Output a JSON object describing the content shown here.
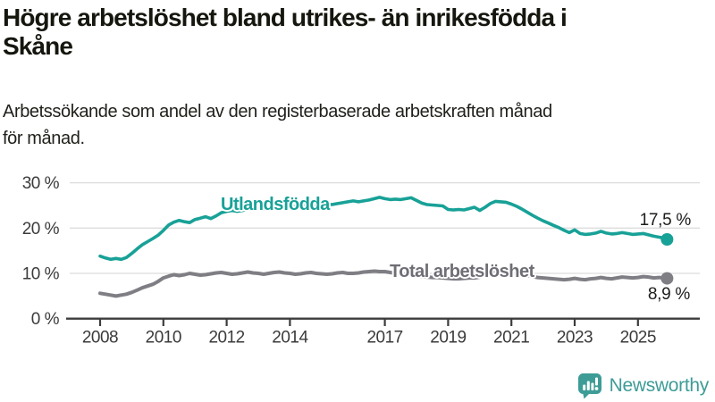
{
  "header": {
    "title": "Högre arbetslöshet bland utrikes- än inrikesfödda i Skåne",
    "title_lines": [
      "Högre arbetslöshet bland utrikes- än inrikesfödda i",
      "Skåne"
    ],
    "subtitle": "Arbetssökande som andel av den registerbaserade arbetskraften månad för månad.",
    "subtitle_lines": [
      "Arbetssökande som andel av den registerbaserade arbetskraften månad",
      "för månad."
    ]
  },
  "chart_data": {
    "type": "line",
    "title": "Högre arbetslöshet bland utrikes- än inrikesfödda i Skåne",
    "subtitle": "Arbetssökande som andel av den registerbaserade arbetskraften månad för månad.",
    "unit": "%",
    "grid": true,
    "legend_position": "inline-labels",
    "x_axis": {
      "ticks": [
        2008,
        2010,
        2012,
        2014,
        2017,
        2019,
        2021,
        2023,
        2025
      ],
      "range": [
        2007,
        2026.9
      ]
    },
    "y_axis": {
      "ticks": [
        0,
        10,
        20,
        30
      ],
      "tick_labels": [
        "0 %",
        "10 %",
        "20 %",
        "30 %"
      ],
      "range": [
        0,
        30
      ]
    },
    "series": [
      {
        "name": "Utlandsfödda",
        "color": "#18a197",
        "label_color": "#18a197",
        "end_value": 17.5,
        "end_label": "17,5 %",
        "points": [
          [
            2008,
            13.8
          ],
          [
            2008.17,
            13.4
          ],
          [
            2008.33,
            13.1
          ],
          [
            2008.5,
            13.3
          ],
          [
            2008.67,
            13.1
          ],
          [
            2008.83,
            13.5
          ],
          [
            2009,
            14.4
          ],
          [
            2009.17,
            15.4
          ],
          [
            2009.33,
            16.3
          ],
          [
            2009.5,
            17.0
          ],
          [
            2009.67,
            17.7
          ],
          [
            2009.83,
            18.4
          ],
          [
            2010,
            19.5
          ],
          [
            2010.17,
            20.7
          ],
          [
            2010.33,
            21.3
          ],
          [
            2010.5,
            21.7
          ],
          [
            2010.67,
            21.4
          ],
          [
            2010.83,
            21.2
          ],
          [
            2011,
            21.9
          ],
          [
            2011.17,
            22.2
          ],
          [
            2011.33,
            22.5
          ],
          [
            2011.5,
            22.1
          ],
          [
            2011.67,
            22.7
          ],
          [
            2011.83,
            23.4
          ],
          [
            2012,
            23.7
          ],
          [
            2012.17,
            23.9
          ],
          [
            2012.33,
            23.7
          ],
          [
            2012.5,
            23.9
          ],
          [
            2012.67,
            24.2
          ],
          [
            2012.83,
            24.1
          ],
          [
            2013,
            24.4
          ],
          [
            2013.17,
            24.2
          ],
          [
            2013.33,
            24.4
          ],
          [
            2013.5,
            24.6
          ],
          [
            2013.67,
            24.8
          ],
          [
            2013.83,
            24.6
          ],
          [
            2014,
            24.9
          ],
          [
            2014.17,
            24.7
          ],
          [
            2014.33,
            24.8
          ],
          [
            2014.5,
            25.1
          ],
          [
            2014.67,
            25.0
          ],
          [
            2014.83,
            25.2
          ],
          [
            2015,
            25.1
          ],
          [
            2015.17,
            25.3
          ],
          [
            2015.33,
            25.2
          ],
          [
            2015.5,
            25.4
          ],
          [
            2015.67,
            25.6
          ],
          [
            2015.83,
            25.8
          ],
          [
            2016,
            26.0
          ],
          [
            2016.17,
            25.8
          ],
          [
            2016.33,
            26.0
          ],
          [
            2016.5,
            26.2
          ],
          [
            2016.67,
            26.5
          ],
          [
            2016.83,
            26.8
          ],
          [
            2017,
            26.5
          ],
          [
            2017.17,
            26.3
          ],
          [
            2017.33,
            26.4
          ],
          [
            2017.5,
            26.3
          ],
          [
            2017.67,
            26.5
          ],
          [
            2017.83,
            26.7
          ],
          [
            2018,
            26.1
          ],
          [
            2018.17,
            25.5
          ],
          [
            2018.33,
            25.2
          ],
          [
            2018.5,
            25.1
          ],
          [
            2018.67,
            25.0
          ],
          [
            2018.83,
            24.9
          ],
          [
            2019,
            24.1
          ],
          [
            2019.17,
            24.0
          ],
          [
            2019.33,
            24.1
          ],
          [
            2019.5,
            24.0
          ],
          [
            2019.67,
            24.3
          ],
          [
            2019.83,
            24.6
          ],
          [
            2020,
            23.9
          ],
          [
            2020.17,
            24.6
          ],
          [
            2020.33,
            25.4
          ],
          [
            2020.5,
            25.9
          ],
          [
            2020.67,
            25.8
          ],
          [
            2020.83,
            25.7
          ],
          [
            2021,
            25.3
          ],
          [
            2021.17,
            24.8
          ],
          [
            2021.33,
            24.2
          ],
          [
            2021.5,
            23.5
          ],
          [
            2021.67,
            22.8
          ],
          [
            2021.83,
            22.2
          ],
          [
            2022,
            21.6
          ],
          [
            2022.17,
            21.1
          ],
          [
            2022.33,
            20.6
          ],
          [
            2022.5,
            20.1
          ],
          [
            2022.67,
            19.5
          ],
          [
            2022.83,
            19.0
          ],
          [
            2023,
            19.6
          ],
          [
            2023.17,
            18.8
          ],
          [
            2023.33,
            18.6
          ],
          [
            2023.5,
            18.7
          ],
          [
            2023.67,
            18.9
          ],
          [
            2023.83,
            19.3
          ],
          [
            2024,
            18.9
          ],
          [
            2024.17,
            18.7
          ],
          [
            2024.33,
            18.8
          ],
          [
            2024.5,
            19.0
          ],
          [
            2024.67,
            18.8
          ],
          [
            2024.83,
            18.6
          ],
          [
            2025,
            18.7
          ],
          [
            2025.17,
            18.8
          ],
          [
            2025.33,
            18.5
          ],
          [
            2025.5,
            18.2
          ],
          [
            2025.67,
            18.0
          ],
          [
            2025.83,
            17.8
          ],
          [
            2025.92,
            17.5
          ]
        ]
      },
      {
        "name": "Total arbetslöshet",
        "color": "#7e7e84",
        "label_color": "#6e6e75",
        "end_value": 8.9,
        "end_label": "8,9 %",
        "points": [
          [
            2008,
            5.6
          ],
          [
            2008.17,
            5.4
          ],
          [
            2008.33,
            5.2
          ],
          [
            2008.5,
            5.0
          ],
          [
            2008.67,
            5.2
          ],
          [
            2008.83,
            5.4
          ],
          [
            2009,
            5.8
          ],
          [
            2009.17,
            6.3
          ],
          [
            2009.33,
            6.8
          ],
          [
            2009.5,
            7.2
          ],
          [
            2009.67,
            7.6
          ],
          [
            2009.83,
            8.2
          ],
          [
            2010,
            9.0
          ],
          [
            2010.17,
            9.4
          ],
          [
            2010.33,
            9.7
          ],
          [
            2010.5,
            9.5
          ],
          [
            2010.67,
            9.7
          ],
          [
            2010.83,
            10.0
          ],
          [
            2011,
            9.8
          ],
          [
            2011.17,
            9.6
          ],
          [
            2011.33,
            9.7
          ],
          [
            2011.5,
            9.9
          ],
          [
            2011.67,
            10.1
          ],
          [
            2011.83,
            10.2
          ],
          [
            2012,
            10.0
          ],
          [
            2012.17,
            9.8
          ],
          [
            2012.33,
            9.9
          ],
          [
            2012.5,
            10.1
          ],
          [
            2012.67,
            10.3
          ],
          [
            2012.83,
            10.1
          ],
          [
            2013,
            10.0
          ],
          [
            2013.17,
            9.8
          ],
          [
            2013.33,
            10.0
          ],
          [
            2013.5,
            10.2
          ],
          [
            2013.67,
            10.3
          ],
          [
            2013.83,
            10.1
          ],
          [
            2014,
            10.0
          ],
          [
            2014.17,
            9.8
          ],
          [
            2014.33,
            9.9
          ],
          [
            2014.5,
            10.1
          ],
          [
            2014.67,
            10.2
          ],
          [
            2014.83,
            10.0
          ],
          [
            2015,
            9.9
          ],
          [
            2015.17,
            9.8
          ],
          [
            2015.33,
            9.9
          ],
          [
            2015.5,
            10.1
          ],
          [
            2015.67,
            10.2
          ],
          [
            2015.83,
            10.0
          ],
          [
            2016,
            10.0
          ],
          [
            2016.17,
            10.1
          ],
          [
            2016.33,
            10.3
          ],
          [
            2016.5,
            10.4
          ],
          [
            2016.67,
            10.5
          ],
          [
            2016.83,
            10.4
          ],
          [
            2017,
            10.4
          ],
          [
            2017.17,
            10.2
          ],
          [
            2017.33,
            10.0
          ],
          [
            2017.5,
            9.9
          ],
          [
            2017.67,
            9.8
          ],
          [
            2017.83,
            9.6
          ],
          [
            2018,
            9.4
          ],
          [
            2018.17,
            9.3
          ],
          [
            2018.33,
            9.2
          ],
          [
            2018.5,
            9.1
          ],
          [
            2018.67,
            9.1
          ],
          [
            2018.83,
            9.0
          ],
          [
            2019,
            8.9
          ],
          [
            2019.17,
            8.8
          ],
          [
            2019.33,
            8.8
          ],
          [
            2019.5,
            8.9
          ],
          [
            2019.67,
            9.0
          ],
          [
            2019.83,
            9.0
          ],
          [
            2020,
            9.2
          ],
          [
            2020.17,
            9.8
          ],
          [
            2020.33,
            10.3
          ],
          [
            2020.5,
            10.5
          ],
          [
            2020.67,
            10.4
          ],
          [
            2020.83,
            10.3
          ],
          [
            2021,
            10.1
          ],
          [
            2021.17,
            9.9
          ],
          [
            2021.33,
            9.7
          ],
          [
            2021.5,
            9.5
          ],
          [
            2021.67,
            9.3
          ],
          [
            2021.83,
            9.1
          ],
          [
            2022,
            9.0
          ],
          [
            2022.17,
            8.9
          ],
          [
            2022.33,
            8.8
          ],
          [
            2022.5,
            8.7
          ],
          [
            2022.67,
            8.6
          ],
          [
            2022.83,
            8.7
          ],
          [
            2023,
            8.9
          ],
          [
            2023.17,
            8.7
          ],
          [
            2023.33,
            8.6
          ],
          [
            2023.5,
            8.8
          ],
          [
            2023.67,
            8.9
          ],
          [
            2023.83,
            9.1
          ],
          [
            2024,
            8.9
          ],
          [
            2024.17,
            8.8
          ],
          [
            2024.33,
            9.0
          ],
          [
            2024.5,
            9.2
          ],
          [
            2024.67,
            9.1
          ],
          [
            2024.83,
            9.0
          ],
          [
            2025,
            9.1
          ],
          [
            2025.17,
            9.3
          ],
          [
            2025.33,
            9.2
          ],
          [
            2025.5,
            9.0
          ],
          [
            2025.67,
            9.1
          ],
          [
            2025.83,
            9.0
          ],
          [
            2025.92,
            8.9
          ]
        ]
      }
    ]
  },
  "footer": {
    "brand": "Newsworthy",
    "brand_color": "#3e9c97"
  }
}
